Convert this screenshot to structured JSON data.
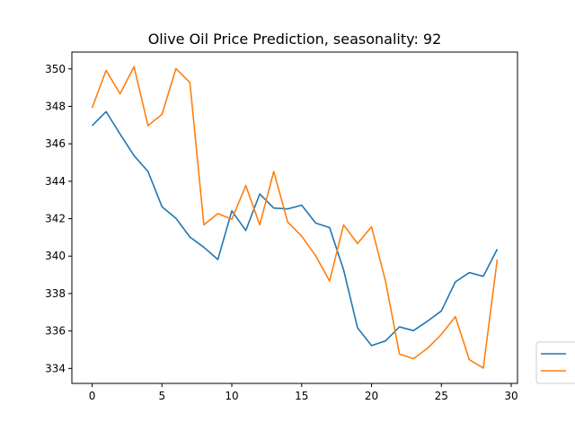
{
  "chart_data": {
    "type": "line",
    "title": "Olive Oil Price Prediction, seasonality: 92",
    "xlabel": "",
    "ylabel": "",
    "xlim": [
      -1.45,
      30.45
    ],
    "ylim": [
      333.2,
      350.9
    ],
    "xticks": [
      0,
      5,
      10,
      15,
      20,
      25,
      30
    ],
    "yticks": [
      334,
      336,
      338,
      340,
      342,
      344,
      346,
      348,
      350
    ],
    "grid": false,
    "legend_position": "right-bottom, outside plot area",
    "x": [
      0,
      1,
      2,
      3,
      4,
      5,
      6,
      7,
      8,
      9,
      10,
      11,
      12,
      13,
      14,
      15,
      16,
      17,
      18,
      19,
      20,
      21,
      22,
      23,
      24,
      25,
      26,
      27,
      28,
      29
    ],
    "series": [
      {
        "color": "#1f77b4",
        "values": [
          346.97,
          347.72,
          346.52,
          345.37,
          344.52,
          342.64,
          342.02,
          341.02,
          340.47,
          339.82,
          342.42,
          341.37,
          343.32,
          342.57,
          342.52,
          342.72,
          341.77,
          341.52,
          339.27,
          336.17,
          335.22,
          335.47,
          336.22,
          336.02,
          336.52,
          337.07,
          338.62,
          339.12,
          338.92,
          340.37
        ]
      },
      {
        "color": "#ff7f0e",
        "values": [
          347.92,
          349.92,
          348.67,
          350.12,
          346.97,
          347.57,
          350.02,
          349.27,
          341.67,
          342.27,
          341.97,
          343.77,
          341.67,
          344.52,
          341.82,
          341.07,
          340.02,
          338.67,
          341.67,
          340.67,
          341.57,
          338.67,
          334.77,
          334.52,
          335.07,
          335.82,
          336.77,
          334.47,
          334.02,
          339.82
        ]
      }
    ]
  }
}
